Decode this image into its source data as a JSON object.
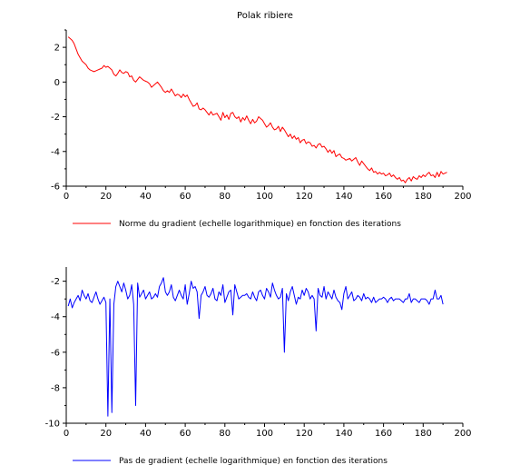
{
  "chart_data": [
    {
      "type": "line",
      "title": "Polak ribiere",
      "xlabel": "",
      "ylabel": "",
      "xlim": [
        0,
        200
      ],
      "ylim": [
        -6,
        3
      ],
      "x_ticks": [
        0,
        20,
        40,
        60,
        80,
        100,
        120,
        140,
        160,
        180,
        200
      ],
      "y_ticks": [
        -6,
        -4,
        -2,
        0,
        2
      ],
      "grid": false,
      "legend_position": "bottom",
      "series": [
        {
          "name": "Norme du gradient (echelle logarithmique) en fonction des iterations",
          "color": "#ff0000",
          "x_start": 1,
          "x_step": 1,
          "values": [
            2.6,
            2.5,
            2.4,
            2.2,
            1.9,
            1.6,
            1.4,
            1.2,
            1.1,
            1.0,
            0.8,
            0.7,
            0.65,
            0.6,
            0.65,
            0.7,
            0.75,
            0.8,
            0.95,
            0.85,
            0.9,
            0.8,
            0.7,
            0.45,
            0.35,
            0.5,
            0.7,
            0.55,
            0.5,
            0.6,
            0.55,
            0.3,
            0.35,
            0.1,
            0.0,
            0.15,
            0.3,
            0.2,
            0.1,
            0.05,
            0.0,
            -0.1,
            -0.3,
            -0.2,
            -0.1,
            0.0,
            -0.15,
            -0.3,
            -0.5,
            -0.6,
            -0.5,
            -0.6,
            -0.4,
            -0.6,
            -0.8,
            -0.7,
            -0.75,
            -0.9,
            -0.7,
            -0.85,
            -0.75,
            -1.0,
            -1.2,
            -1.4,
            -1.35,
            -1.2,
            -1.55,
            -1.6,
            -1.5,
            -1.6,
            -1.75,
            -1.9,
            -1.7,
            -1.9,
            -1.85,
            -1.8,
            -2.0,
            -2.2,
            -1.75,
            -2.05,
            -1.9,
            -2.15,
            -1.8,
            -1.75,
            -2.0,
            -2.1,
            -2.0,
            -2.3,
            -2.05,
            -2.2,
            -1.95,
            -2.2,
            -2.4,
            -2.15,
            -2.35,
            -2.25,
            -2.0,
            -2.1,
            -2.2,
            -2.4,
            -2.6,
            -2.5,
            -2.35,
            -2.6,
            -2.75,
            -2.7,
            -2.55,
            -2.85,
            -2.6,
            -2.75,
            -2.95,
            -3.15,
            -3.0,
            -3.25,
            -3.1,
            -3.3,
            -3.2,
            -3.5,
            -3.35,
            -3.3,
            -3.55,
            -3.45,
            -3.5,
            -3.7,
            -3.65,
            -3.8,
            -3.6,
            -3.55,
            -3.75,
            -3.7,
            -3.85,
            -4.05,
            -3.9,
            -4.1,
            -3.95,
            -4.3,
            -4.2,
            -4.15,
            -4.35,
            -4.4,
            -4.5,
            -4.45,
            -4.4,
            -4.55,
            -4.45,
            -4.35,
            -4.6,
            -4.8,
            -4.55,
            -4.7,
            -4.85,
            -5.0,
            -5.1,
            -4.95,
            -5.2,
            -5.15,
            -5.3,
            -5.2,
            -5.3,
            -5.25,
            -5.4,
            -5.35,
            -5.25,
            -5.45,
            -5.35,
            -5.5,
            -5.6,
            -5.5,
            -5.7,
            -5.65,
            -5.8,
            -5.6,
            -5.5,
            -5.7,
            -5.45,
            -5.55,
            -5.6,
            -5.4,
            -5.5,
            -5.35,
            -5.45,
            -5.3,
            -5.2,
            -5.4,
            -5.35,
            -5.5,
            -5.2,
            -5.45,
            -5.15,
            -5.3,
            -5.25,
            -5.2
          ]
        }
      ]
    },
    {
      "type": "line",
      "title": "",
      "xlabel": "",
      "ylabel": "",
      "xlim": [
        0,
        200
      ],
      "ylim": [
        -10,
        -1.2
      ],
      "x_ticks": [
        0,
        20,
        40,
        60,
        80,
        100,
        120,
        140,
        160,
        180,
        200
      ],
      "y_ticks": [
        -10,
        -8,
        -6,
        -4,
        -2
      ],
      "grid": false,
      "legend_position": "bottom",
      "series": [
        {
          "name": "Pas de gradient (echelle logarithmique) en fonction des iterations",
          "color": "#0000ff",
          "x_start": 1,
          "x_step": 1,
          "values": [
            -3.4,
            -3.0,
            -3.5,
            -3.2,
            -3.0,
            -2.8,
            -3.1,
            -2.5,
            -2.8,
            -3.0,
            -2.7,
            -3.1,
            -3.2,
            -2.9,
            -2.6,
            -3.0,
            -3.3,
            -3.1,
            -2.9,
            -3.2,
            -9.6,
            -3.0,
            -9.4,
            -3.3,
            -2.3,
            -2.0,
            -2.3,
            -2.6,
            -2.1,
            -2.5,
            -3.0,
            -2.8,
            -2.2,
            -3.3,
            -9.0,
            -2.1,
            -2.9,
            -2.7,
            -2.5,
            -3.0,
            -2.8,
            -2.6,
            -3.0,
            -2.9,
            -2.7,
            -2.9,
            -2.3,
            -2.1,
            -1.8,
            -2.6,
            -2.8,
            -2.6,
            -2.2,
            -2.9,
            -3.1,
            -2.8,
            -2.5,
            -2.8,
            -3.0,
            -2.2,
            -3.3,
            -2.7,
            -2.0,
            -2.4,
            -2.3,
            -2.6,
            -4.1,
            -2.8,
            -2.6,
            -2.3,
            -2.8,
            -2.9,
            -2.7,
            -2.4,
            -3.0,
            -3.1,
            -2.6,
            -2.8,
            -2.2,
            -3.2,
            -2.9,
            -2.6,
            -2.5,
            -3.9,
            -2.2,
            -2.6,
            -3.0,
            -2.9,
            -2.8,
            -2.8,
            -2.7,
            -2.9,
            -3.0,
            -2.6,
            -2.9,
            -3.1,
            -2.6,
            -2.5,
            -2.8,
            -3.0,
            -2.4,
            -2.6,
            -2.9,
            -2.1,
            -2.5,
            -2.8,
            -3.0,
            -2.9,
            -2.4,
            -6.0,
            -2.7,
            -3.1,
            -2.6,
            -2.3,
            -2.8,
            -3.3,
            -2.9,
            -3.0,
            -2.5,
            -2.8,
            -2.4,
            -2.6,
            -3.0,
            -2.8,
            -3.0,
            -4.8,
            -2.4,
            -2.8,
            -2.9,
            -2.3,
            -3.0,
            -2.6,
            -2.8,
            -3.0,
            -2.5,
            -2.9,
            -3.1,
            -3.2,
            -3.6,
            -2.7,
            -2.3,
            -3.0,
            -2.8,
            -2.6,
            -3.1,
            -3.0,
            -2.8,
            -2.9,
            -3.1,
            -2.7,
            -3.0,
            -2.9,
            -3.0,
            -3.2,
            -2.9,
            -3.2,
            -3.1,
            -3.0,
            -3.0,
            -2.9,
            -3.0,
            -3.2,
            -3.0,
            -2.9,
            -3.1,
            -3.0,
            -3.0,
            -3.0,
            -3.1,
            -3.2,
            -3.0,
            -3.0,
            -2.7,
            -3.2,
            -3.0,
            -3.0,
            -3.1,
            -3.2,
            -3.0,
            -3.0,
            -3.0,
            -3.1,
            -3.3,
            -3.0,
            -3.0,
            -2.5,
            -3.0,
            -3.0,
            -2.8,
            -3.3
          ]
        }
      ]
    }
  ]
}
